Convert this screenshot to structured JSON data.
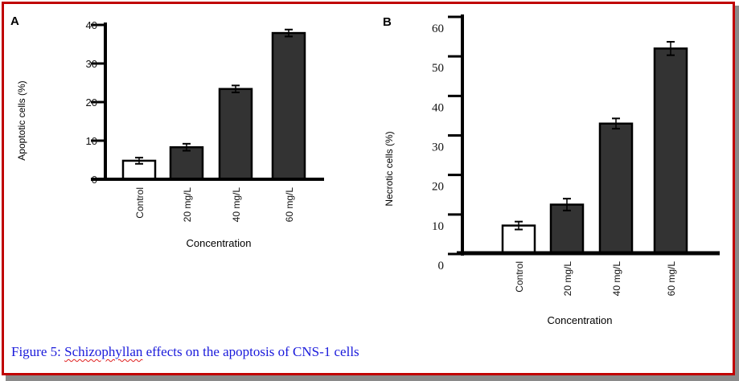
{
  "colors": {
    "frame_border": "#c00000",
    "frame_shadow": "#8a8a8a",
    "bar_treated": "#333333",
    "bar_control": "#ffffff",
    "axis": "#000000",
    "caption_text": "#1a1adb",
    "spellcheck_underline": "#e02020"
  },
  "caption": {
    "prefix": "Figure 5: ",
    "underlined_word": "Schizophyllan",
    "suffix": " effects on the apoptosis of CNS-1 cells"
  },
  "chart_data": [
    {
      "panel": "A",
      "type": "bar",
      "title": "",
      "xlabel": "Concentration",
      "ylabel": "Apoptotic cells (%)",
      "categories": [
        "Control",
        "20 mg/L",
        "40 mg/L",
        "60 mg/L"
      ],
      "values": [
        4.8,
        8.3,
        23.4,
        37.9
      ],
      "errors": [
        0.8,
        0.9,
        0.9,
        0.9
      ],
      "fill": [
        "white",
        "dark",
        "dark",
        "dark"
      ],
      "ylim": [
        0,
        40
      ],
      "yticks": [
        0,
        10,
        20,
        30,
        40
      ],
      "ytick_labels": [
        "0",
        "10",
        "20",
        "30",
        "40"
      ],
      "grid": false,
      "legend": "none"
    },
    {
      "panel": "B",
      "type": "bar",
      "title": "",
      "xlabel": "Concentration",
      "ylabel": "Necrotic cells (%)",
      "categories": [
        "Control",
        "20 mg/L",
        "40 mg/L",
        "60 mg/L"
      ],
      "values": [
        7.2,
        12.5,
        33.0,
        52.0
      ],
      "errors": [
        1.0,
        1.5,
        1.3,
        1.7
      ],
      "fill": [
        "white",
        "dark",
        "dark",
        "dark"
      ],
      "ylim": [
        0,
        60
      ],
      "yticks": [
        0,
        10,
        20,
        30,
        40,
        50,
        60
      ],
      "ytick_labels": [
        "0",
        "10",
        "20",
        "30",
        "40",
        "50",
        "60"
      ],
      "grid": false,
      "legend": "none"
    }
  ]
}
